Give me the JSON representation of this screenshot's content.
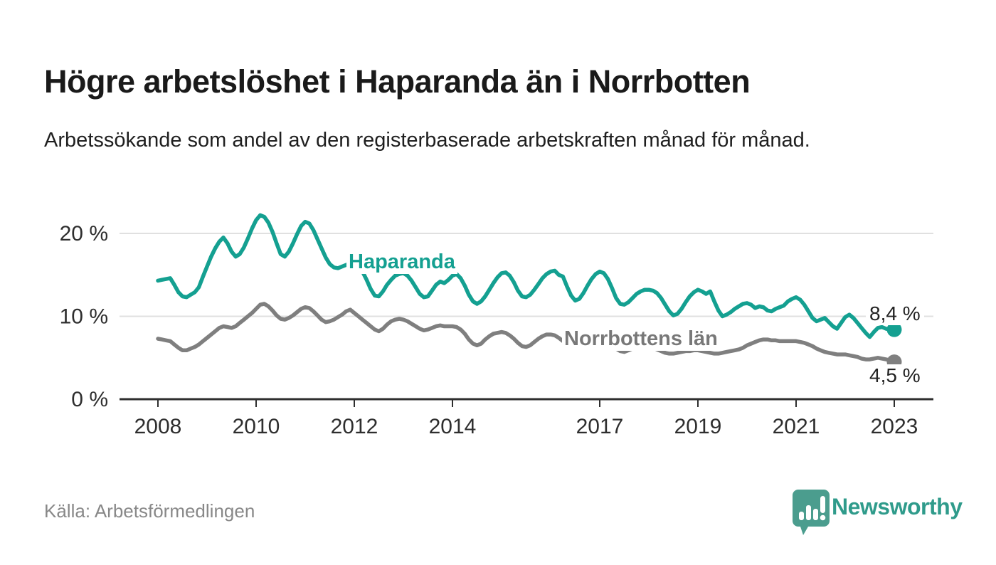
{
  "header": {
    "title": "Högre arbetslöshet i Haparanda än i Norrbotten",
    "subtitle": "Arbetssökande som andel av den registerbaserade arbetskraften månad för månad."
  },
  "footer": {
    "source": "Källa: Arbetsförmedlingen",
    "brand": "Newsworthy"
  },
  "colors": {
    "accent_teal": "#14a091",
    "series_gray": "#7f7f7f",
    "axis": "#2e2e2e",
    "grid": "#e0e0e0",
    "logo_teal": "#4b9d8e"
  },
  "chart_data": {
    "type": "line",
    "title": "Högre arbetslöshet i Haparanda än i Norrbotten",
    "xlabel": "",
    "ylabel": "",
    "x_start_year": 2008,
    "x_step_months": 1,
    "x_end": "2023-01",
    "x_ticks": [
      2008,
      2010,
      2012,
      2014,
      2017,
      2019,
      2021,
      2023
    ],
    "y_ticks": [
      0,
      10,
      20
    ],
    "y_tick_labels": [
      "0 %",
      "10 %",
      "20 %"
    ],
    "ylim": [
      0,
      24
    ],
    "grid": "horizontal-only",
    "legend_position": "inline-labels",
    "series": [
      {
        "name": "Haparanda",
        "color": "#14a091",
        "end_label": "8,4 %",
        "end_value": 8.4,
        "values": [
          14.3,
          14.4,
          14.5,
          14.6,
          13.8,
          12.9,
          12.4,
          12.3,
          12.6,
          12.9,
          13.5,
          14.8,
          16.0,
          17.2,
          18.2,
          19.0,
          19.5,
          18.8,
          17.8,
          17.2,
          17.5,
          18.3,
          19.4,
          20.6,
          21.6,
          22.2,
          22.0,
          21.3,
          20.2,
          18.8,
          17.5,
          17.2,
          17.8,
          18.8,
          19.9,
          20.9,
          21.4,
          21.2,
          20.4,
          19.3,
          18.2,
          17.1,
          16.3,
          15.9,
          15.8,
          16.0,
          16.2,
          16.4,
          16.3,
          16.0,
          15.4,
          14.4,
          13.3,
          12.5,
          12.4,
          13.0,
          13.8,
          14.4,
          14.9,
          15.1,
          15.2,
          14.9,
          14.3,
          13.5,
          12.7,
          12.3,
          12.4,
          13.1,
          13.8,
          14.2,
          14.0,
          14.4,
          14.9,
          15.1,
          14.6,
          13.7,
          12.6,
          11.8,
          11.5,
          11.8,
          12.4,
          13.2,
          14.0,
          14.7,
          15.2,
          15.3,
          14.9,
          14.1,
          13.1,
          12.4,
          12.3,
          12.6,
          13.2,
          13.9,
          14.6,
          15.1,
          15.4,
          15.5,
          15.0,
          14.8,
          13.6,
          12.5,
          11.9,
          12.1,
          12.8,
          13.7,
          14.5,
          15.1,
          15.4,
          15.2,
          14.5,
          13.4,
          12.2,
          11.5,
          11.4,
          11.7,
          12.2,
          12.7,
          13.0,
          13.2,
          13.2,
          13.1,
          12.8,
          12.2,
          11.4,
          10.6,
          10.1,
          10.3,
          10.9,
          11.7,
          12.4,
          12.9,
          13.2,
          13.0,
          12.7,
          13.0,
          11.8,
          10.7,
          10.0,
          10.2,
          10.5,
          10.9,
          11.2,
          11.5,
          11.6,
          11.4,
          11.0,
          11.2,
          11.1,
          10.7,
          10.6,
          10.9,
          11.1,
          11.3,
          11.8,
          12.1,
          12.3,
          12.0,
          11.4,
          10.6,
          9.8,
          9.4,
          9.6,
          9.8,
          9.3,
          8.8,
          8.5,
          9.2,
          9.9,
          10.2,
          9.8,
          9.2,
          8.6,
          8.0,
          7.5,
          8.1,
          8.6,
          8.7,
          8.5,
          8.4,
          8.4
        ]
      },
      {
        "name": "Norrbottens län",
        "color": "#7f7f7f",
        "end_label": "4,5 %",
        "end_value": 4.5,
        "values": [
          7.3,
          7.2,
          7.1,
          7.0,
          6.6,
          6.2,
          5.9,
          5.9,
          6.1,
          6.3,
          6.6,
          7.0,
          7.4,
          7.8,
          8.2,
          8.6,
          8.8,
          8.7,
          8.6,
          8.8,
          9.2,
          9.6,
          10.0,
          10.4,
          10.9,
          11.4,
          11.5,
          11.2,
          10.7,
          10.1,
          9.7,
          9.6,
          9.8,
          10.1,
          10.5,
          10.9,
          11.1,
          11.0,
          10.6,
          10.1,
          9.6,
          9.3,
          9.4,
          9.6,
          9.9,
          10.2,
          10.6,
          10.8,
          10.4,
          10.0,
          9.6,
          9.2,
          8.8,
          8.4,
          8.2,
          8.5,
          9.0,
          9.4,
          9.6,
          9.7,
          9.6,
          9.4,
          9.1,
          8.8,
          8.5,
          8.3,
          8.4,
          8.6,
          8.8,
          8.9,
          8.8,
          8.8,
          8.8,
          8.7,
          8.4,
          7.9,
          7.2,
          6.7,
          6.5,
          6.7,
          7.2,
          7.6,
          7.9,
          8.0,
          8.1,
          8.0,
          7.7,
          7.3,
          6.8,
          6.4,
          6.3,
          6.5,
          6.9,
          7.3,
          7.6,
          7.8,
          7.8,
          7.7,
          7.4,
          7.0,
          6.6,
          6.2,
          6.1,
          6.3,
          6.6,
          6.9,
          7.1,
          7.2,
          7.2,
          7.1,
          6.9,
          6.5,
          6.1,
          5.8,
          5.7,
          5.9,
          6.1,
          6.2,
          6.3,
          6.3,
          6.3,
          6.2,
          6.0,
          5.8,
          5.6,
          5.5,
          5.5,
          5.6,
          5.7,
          5.8,
          5.8,
          5.9,
          5.9,
          5.8,
          5.7,
          5.6,
          5.5,
          5.5,
          5.6,
          5.7,
          5.8,
          5.9,
          6.0,
          6.2,
          6.5,
          6.7,
          6.9,
          7.1,
          7.2,
          7.2,
          7.1,
          7.1,
          7.0,
          7.0,
          7.0,
          7.0,
          7.0,
          6.9,
          6.8,
          6.6,
          6.4,
          6.1,
          5.9,
          5.7,
          5.6,
          5.5,
          5.4,
          5.4,
          5.4,
          5.3,
          5.2,
          5.1,
          4.9,
          4.8,
          4.8,
          4.9,
          5.0,
          4.9,
          4.8,
          4.7,
          4.5
        ]
      }
    ]
  }
}
